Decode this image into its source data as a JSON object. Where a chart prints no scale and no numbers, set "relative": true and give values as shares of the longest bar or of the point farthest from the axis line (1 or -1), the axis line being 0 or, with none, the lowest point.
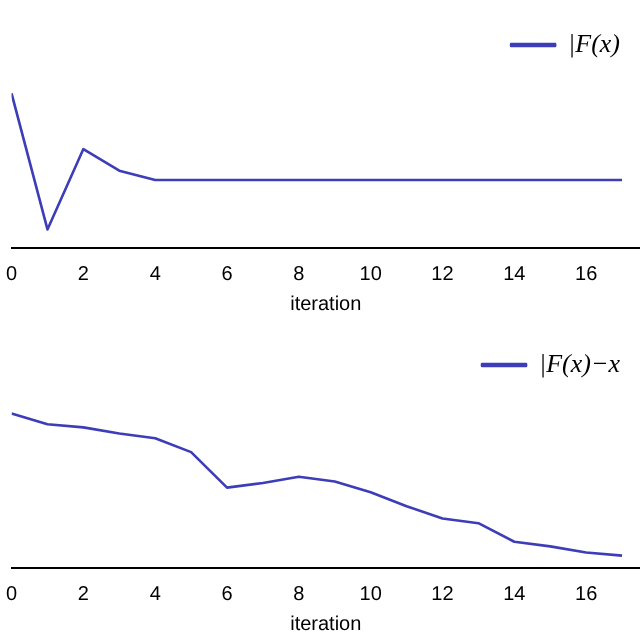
{
  "chart_data": [
    {
      "type": "line",
      "xlabel": "iteration",
      "relative": true,
      "x": [
        0,
        1,
        2,
        3,
        4,
        5,
        6,
        7,
        8,
        9,
        10,
        11,
        12,
        13,
        14,
        15,
        16,
        17
      ],
      "series": [
        {
          "name": "|F(x)",
          "color": "#3d3db8",
          "values": [
            1,
            0.12,
            0.64,
            0.5,
            0.44,
            0.44,
            0.44,
            0.44,
            0.44,
            0.44,
            0.44,
            0.44,
            0.44,
            0.44,
            0.44,
            0.44,
            0.44,
            0.44
          ]
        }
      ],
      "xlim": [
        0,
        17.5
      ],
      "xticks": [
        0,
        2,
        4,
        6,
        8,
        10,
        12,
        14,
        16
      ],
      "tick_labels": "x",
      "legend": "top right",
      "grid": false,
      "marker": "none"
    },
    {
      "type": "line",
      "xlabel": "iteration",
      "relative": true,
      "x": [
        0,
        1,
        2,
        3,
        4,
        5,
        6,
        7,
        8,
        9,
        10,
        11,
        12,
        13,
        14,
        15,
        16,
        17
      ],
      "series": [
        {
          "name": "|F(x)−x",
          "color": "#3d3db8",
          "values": [
            1,
            0.93,
            0.91,
            0.87,
            0.84,
            0.75,
            0.52,
            0.55,
            0.59,
            0.56,
            0.49,
            0.4,
            0.32,
            0.29,
            0.17,
            0.14,
            0.1,
            0.08
          ]
        }
      ],
      "xlim": [
        0,
        17.5
      ],
      "xticks": [
        0,
        2,
        4,
        6,
        8,
        10,
        12,
        14,
        16
      ],
      "tick_labels": "x",
      "legend": "top right",
      "grid": false,
      "marker": "none"
    }
  ]
}
